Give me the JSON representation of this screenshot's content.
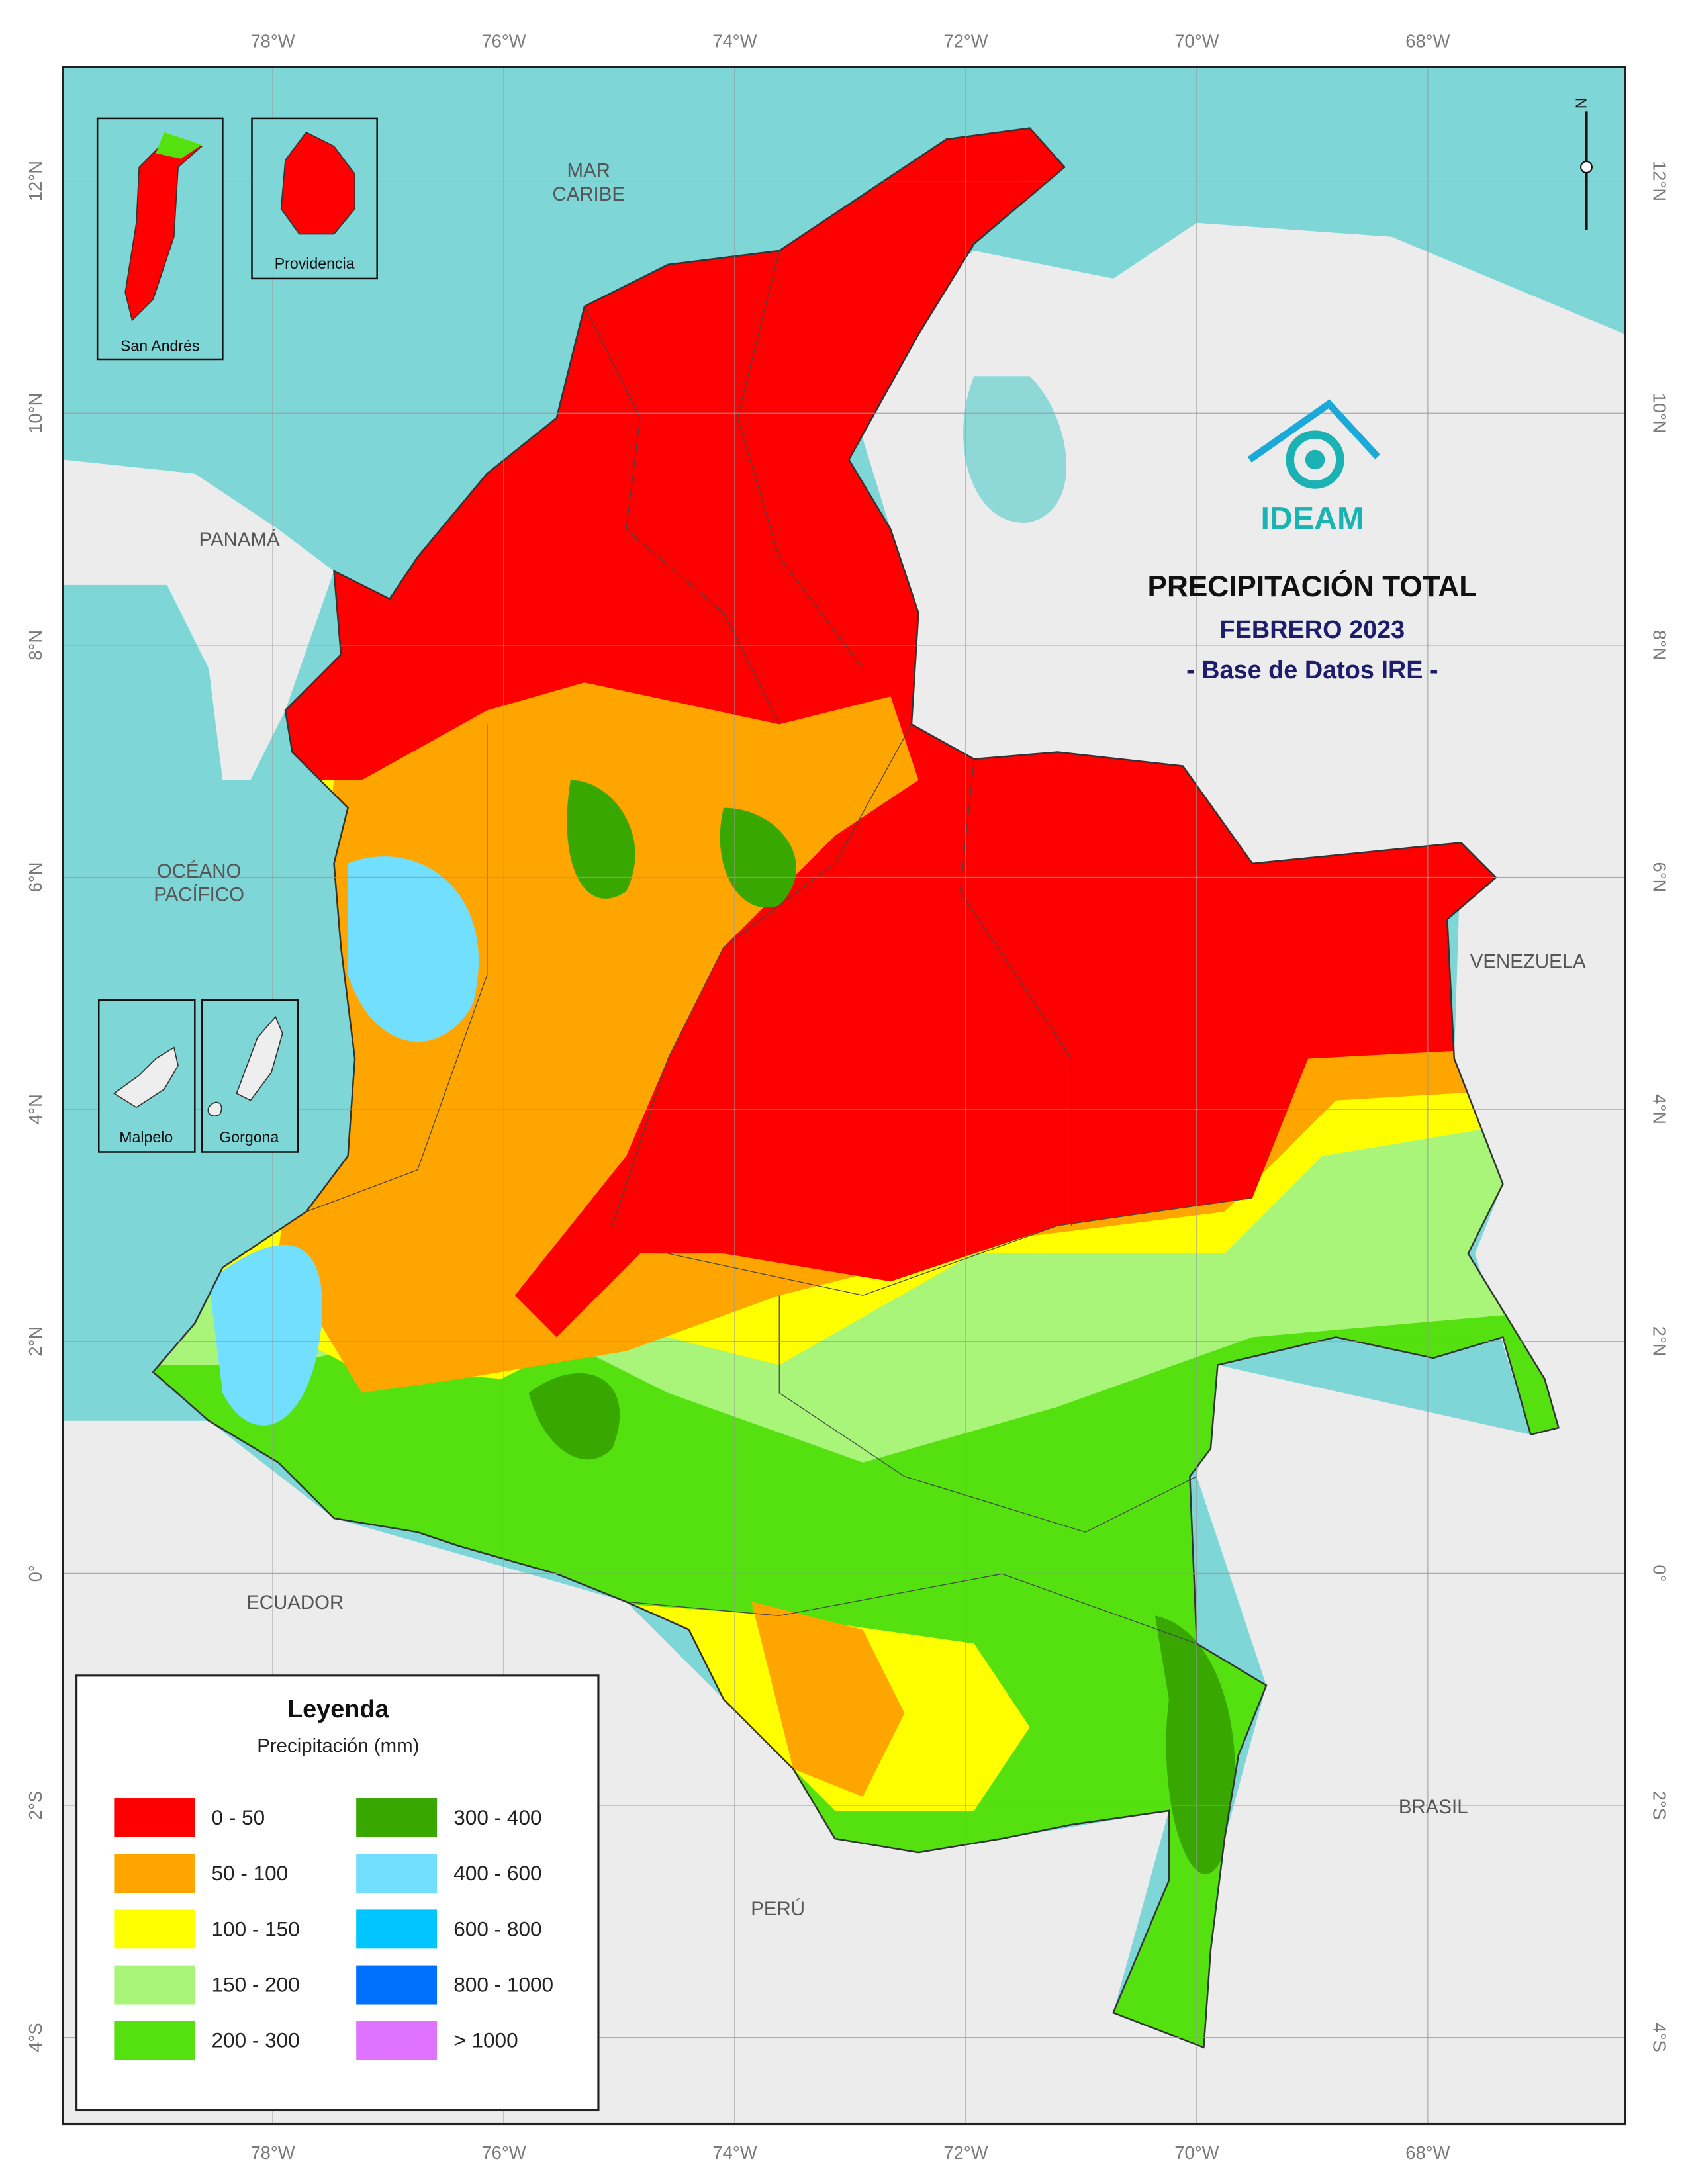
{
  "map": {
    "title": "PRECIPITACIÓN TOTAL",
    "subtitle": "FEBRERO 2023",
    "source": "- Base de Datos IRE -",
    "logo": "IDEAM",
    "north": "N",
    "longitudes": [
      "78°W",
      "76°W",
      "74°W",
      "72°W",
      "70°W",
      "68°W"
    ],
    "latitudes": [
      "12°N",
      "10°N",
      "8°N",
      "6°N",
      "4°N",
      "2°N",
      "0°",
      "2°S",
      "4°S"
    ],
    "places": [
      [
        "MAR",
        "CARIBE"
      ],
      [
        "PANAMÁ"
      ],
      [
        "OCÉANO",
        "PACÍFICO"
      ],
      [
        "VENEZUELA"
      ],
      [
        "ECUADOR"
      ],
      [
        "BRASIL"
      ],
      [
        "PERÚ"
      ]
    ],
    "insets": [
      "San Andrés",
      "Providencia",
      "Malpelo",
      "Gorgona"
    ],
    "legend": {
      "title": "Leyenda",
      "subtitle": "Precipitación (mm)",
      "classes": [
        {
          "label": "0 - 50",
          "color": "#ff0000"
        },
        {
          "label": "50 - 100",
          "color": "#ffa500"
        },
        {
          "label": "100 - 150",
          "color": "#ffff00"
        },
        {
          "label": "150 - 200",
          "color": "#a8f57a"
        },
        {
          "label": "200 - 300",
          "color": "#55e010"
        },
        {
          "label": "300 - 400",
          "color": "#38a800"
        },
        {
          "label": "400 - 600",
          "color": "#73dfff"
        },
        {
          "label": "600 - 800",
          "color": "#00c5ff"
        },
        {
          "label": "800 - 1000",
          "color": "#0070ff"
        },
        {
          "label": "> 1000",
          "color": "#df73ff"
        }
      ]
    }
  }
}
